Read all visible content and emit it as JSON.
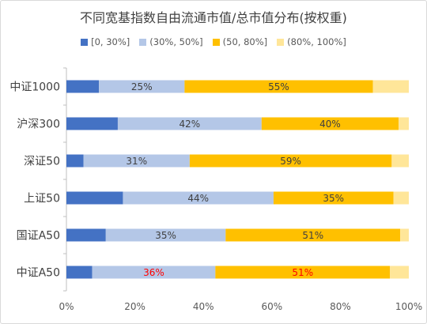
{
  "chart_data": {
    "type": "bar",
    "orientation": "horizontal",
    "stacked": "percent",
    "title": "不同宽基指数自由流通市值/总市值分布(按权重)",
    "categories": [
      "中证1000",
      "沪深300",
      "深证50",
      "上证50",
      "国证A50",
      "中证A50"
    ],
    "series": [
      {
        "name": "[0, 30%]",
        "color": "#4472c4",
        "values": [
          9.5,
          15,
          5,
          16.5,
          11.5,
          7.5
        ]
      },
      {
        "name": "(30%, 50%]",
        "color": "#b4c7e7",
        "values": [
          25,
          42,
          31,
          44,
          35,
          36
        ]
      },
      {
        "name": "(50, 80%]",
        "color": "#ffc000",
        "values": [
          55,
          40,
          59,
          35,
          51,
          51
        ]
      },
      {
        "name": "(80%, 100%]",
        "color": "#ffe699",
        "values": [
          10.5,
          3,
          5,
          4.5,
          2.5,
          5.5
        ]
      }
    ],
    "data_labels": [
      {
        "category": "中证1000",
        "series": "(30%, 50%]",
        "text": "25%",
        "color": "#404040"
      },
      {
        "category": "中证1000",
        "series": "(50, 80%]",
        "text": "55%",
        "color": "#404040"
      },
      {
        "category": "沪深300",
        "series": "(30%, 50%]",
        "text": "42%",
        "color": "#404040"
      },
      {
        "category": "沪深300",
        "series": "(50, 80%]",
        "text": "40%",
        "color": "#404040"
      },
      {
        "category": "深证50",
        "series": "(30%, 50%]",
        "text": "31%",
        "color": "#404040"
      },
      {
        "category": "深证50",
        "series": "(50, 80%]",
        "text": "59%",
        "color": "#404040"
      },
      {
        "category": "上证50",
        "series": "(30%, 50%]",
        "text": "44%",
        "color": "#404040"
      },
      {
        "category": "上证50",
        "series": "(50, 80%]",
        "text": "35%",
        "color": "#404040"
      },
      {
        "category": "国证A50",
        "series": "(30%, 50%]",
        "text": "35%",
        "color": "#404040"
      },
      {
        "category": "国证A50",
        "series": "(50, 80%]",
        "text": "51%",
        "color": "#404040"
      },
      {
        "category": "中证A50",
        "series": "(30%, 50%]",
        "text": "36%",
        "color": "#ff0000"
      },
      {
        "category": "中证A50",
        "series": "(50, 80%]",
        "text": "51%",
        "color": "#ff0000"
      }
    ],
    "xlim": [
      0,
      100
    ],
    "xticks": [
      "0%",
      "20%",
      "40%",
      "60%",
      "80%",
      "100%"
    ],
    "xlabel": "",
    "ylabel": "",
    "legend_position": "top",
    "grid": false
  }
}
